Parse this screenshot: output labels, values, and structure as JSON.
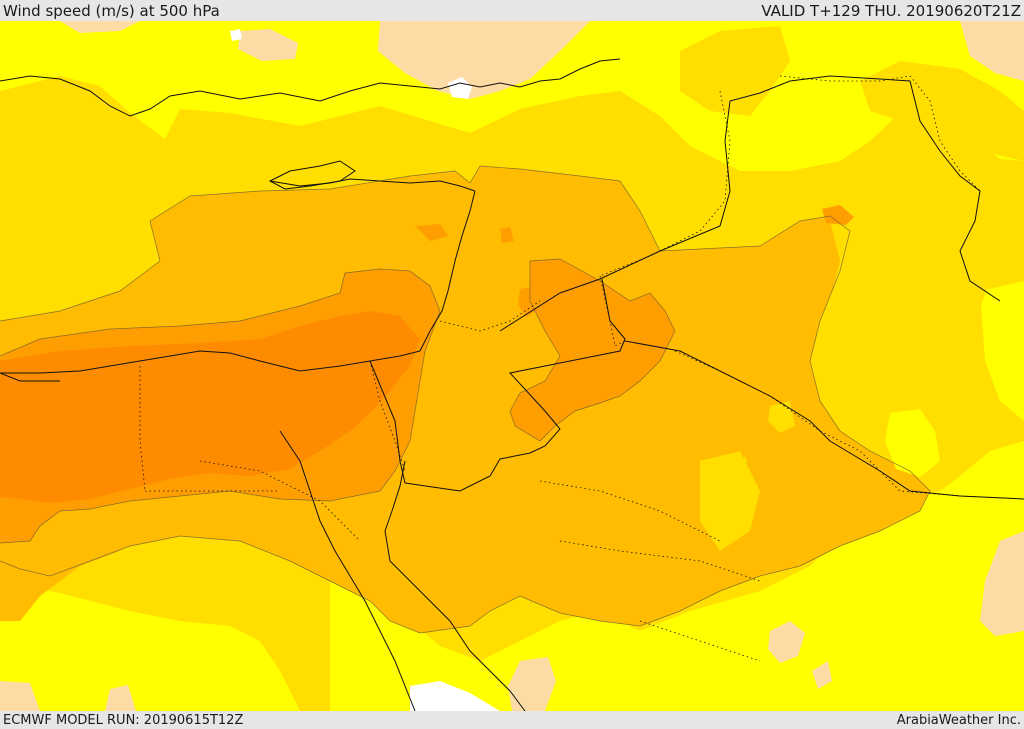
{
  "header": {
    "title": "Wind speed (m/s) at 500 hPa",
    "valid": "VALID T+129 THU. 20190620T21Z"
  },
  "footer": {
    "model_run": "ECMWF MODEL RUN: 20190615T12Z",
    "credit": "ArabiaWeather Inc."
  },
  "colors": {
    "band_lowest": "#ffff00",
    "band_low": "#ffde00",
    "band_mid": "#ffbc00",
    "band_high": "#ff9e00",
    "band_peak": "#ff8c00",
    "land_peach": "#fddba4",
    "missing": "#ffffff",
    "contour_line": "#6b5a3a",
    "border_line": "#111111"
  }
}
